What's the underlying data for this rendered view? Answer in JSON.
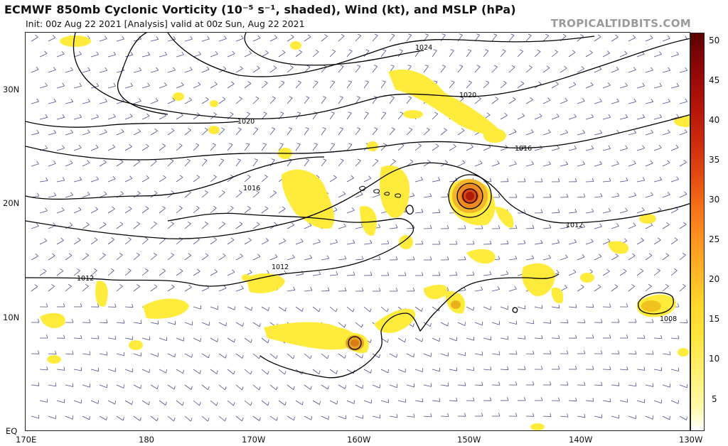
{
  "header": {
    "title": "ECMWF 850mb Cyclonic Vorticity (10⁻⁵ s⁻¹, shaded), Wind (kt), and MSLP (hPa)",
    "subtitle": "Init: 00z Aug 22 2021   [Analysis]   valid at 00z Sun, Aug 22 2021",
    "brand": "TROPICALTIDBITS.COM"
  },
  "map": {
    "lat_labels": [
      "30N",
      "20N",
      "10N",
      "EQ"
    ],
    "lon_labels": [
      "170E",
      "180",
      "170W",
      "160W",
      "150W",
      "140W",
      "130W"
    ],
    "isobar_labels": [
      "1024",
      "1020",
      "1020",
      "1016",
      "1016",
      "1012",
      "1012",
      "1012",
      "1008"
    ],
    "colors": {
      "isobar": "#000000",
      "wind_barb": "#4b4f8c",
      "vorticity_low": "#ffe81a",
      "vorticity_mid": "#e9a21c",
      "vorticity_high": "#c41b0e"
    }
  },
  "colorbar": {
    "ticks": [
      "50",
      "45",
      "40",
      "35",
      "30",
      "25",
      "20",
      "15",
      "10",
      "5"
    ]
  }
}
